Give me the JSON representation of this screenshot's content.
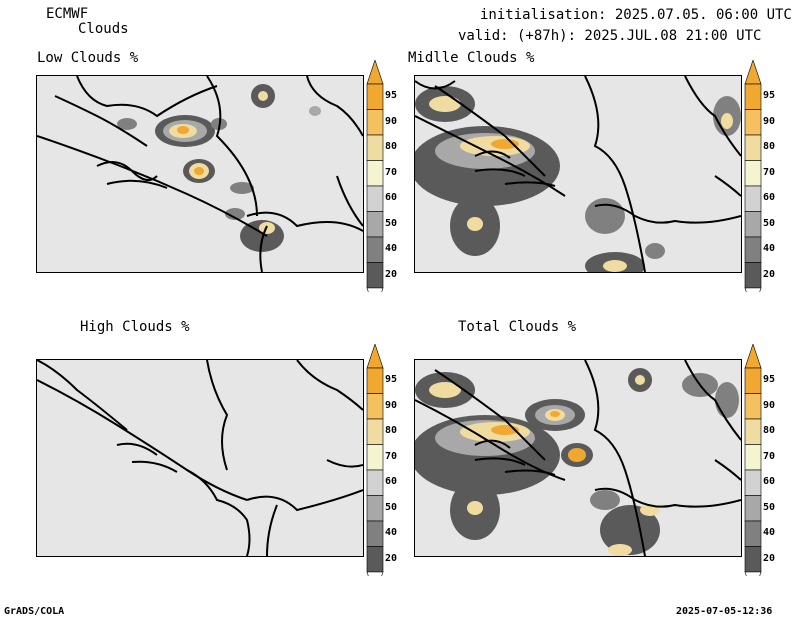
{
  "header": {
    "model": "ECMWF",
    "product": "Clouds",
    "initialisation": "initialisation: 2025.07.05. 06:00 UTC",
    "valid": "valid: (+87h): 2025.JUL.08 21:00 UTC"
  },
  "panels": [
    {
      "title": "Low Clouds %"
    },
    {
      "title": "Midlle Clouds %"
    },
    {
      "title": "High Clouds %"
    },
    {
      "title": "Total Clouds %"
    }
  ],
  "colorbar": {
    "labels": [
      "95",
      "90",
      "80",
      "70",
      "60",
      "50",
      "40",
      "20"
    ],
    "colors": {
      "c95": "#f0a830",
      "c90": "#f4c060",
      "c80": "#f0dca0",
      "c70": "#f4f4d0",
      "c60": "#d2d2d2",
      "c50": "#a8a8a8",
      "c40": "#808080",
      "c20": "#5a5a5a",
      "below": "#ffffff"
    }
  },
  "footer": {
    "left": "GrADS/COLA",
    "right": "2025-07-05-12:36"
  }
}
